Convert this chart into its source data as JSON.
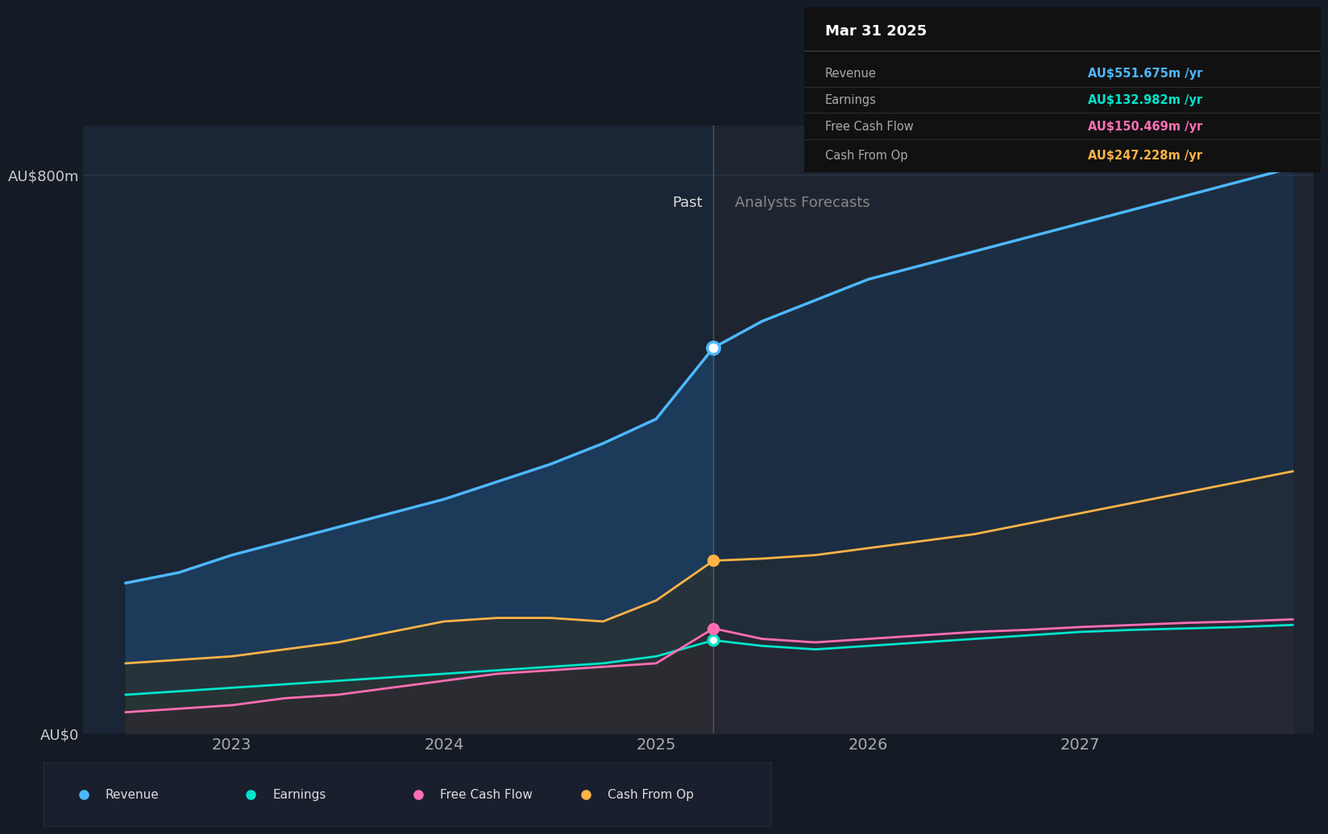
{
  "bg_color": "#141b25",
  "plot_bg_color_left": "#1a2535",
  "plot_bg_color_right": "#1e2530",
  "divider_x": 2025.27,
  "x_min": 2022.3,
  "x_max": 2028.1,
  "y_min": 0,
  "y_max": 870,
  "y_tick_labels": [
    "AU$0",
    "AU$800m"
  ],
  "y_tick_values": [
    0,
    800
  ],
  "x_tick_labels": [
    "2023",
    "2024",
    "2025",
    "2026",
    "2027"
  ],
  "x_tick_values": [
    2023,
    2024,
    2025,
    2026,
    2027
  ],
  "past_label": "Past",
  "forecast_label": "Analysts Forecasts",
  "tooltip_title": "Mar 31 2025",
  "tooltip_items": [
    {
      "label": "Revenue",
      "value": "AU$551.675m /yr",
      "color": "#4db8ff"
    },
    {
      "label": "Earnings",
      "value": "AU$132.982m /yr",
      "color": "#00e5cc"
    },
    {
      "label": "Free Cash Flow",
      "value": "AU$150.469m /yr",
      "color": "#ff6eb4"
    },
    {
      "label": "Cash From Op",
      "value": "AU$247.228m /yr",
      "color": "#ffb347"
    }
  ],
  "revenue": {
    "x": [
      2022.5,
      2022.75,
      2023.0,
      2023.25,
      2023.5,
      2023.75,
      2024.0,
      2024.25,
      2024.5,
      2024.75,
      2025.0,
      2025.27,
      2025.5,
      2025.75,
      2026.0,
      2026.25,
      2026.5,
      2026.75,
      2027.0,
      2027.25,
      2027.5,
      2027.75,
      2028.0
    ],
    "y": [
      215,
      230,
      255,
      275,
      295,
      315,
      335,
      360,
      385,
      415,
      450,
      552,
      590,
      620,
      650,
      670,
      690,
      710,
      730,
      750,
      770,
      790,
      810
    ],
    "color": "#4db8ff",
    "fill_color_left": "#1e4d7a",
    "fill_color_right": "#1a3a5c"
  },
  "earnings": {
    "x": [
      2022.5,
      2022.75,
      2023.0,
      2023.25,
      2023.5,
      2023.75,
      2024.0,
      2024.25,
      2024.5,
      2024.75,
      2025.0,
      2025.27,
      2025.5,
      2025.75,
      2026.0,
      2026.25,
      2026.5,
      2026.75,
      2027.0,
      2027.25,
      2027.5,
      2027.75,
      2028.0
    ],
    "y": [
      55,
      60,
      65,
      70,
      75,
      80,
      85,
      90,
      95,
      100,
      110,
      133,
      125,
      120,
      125,
      130,
      135,
      140,
      145,
      148,
      150,
      152,
      155
    ],
    "color": "#00e5cc",
    "fill_color": "#1a3d3a"
  },
  "free_cash_flow": {
    "x": [
      2022.5,
      2022.75,
      2023.0,
      2023.25,
      2023.5,
      2023.75,
      2024.0,
      2024.25,
      2024.5,
      2024.75,
      2025.0,
      2025.27,
      2025.5,
      2025.75,
      2026.0,
      2026.25,
      2026.5,
      2026.75,
      2027.0,
      2027.25,
      2027.5,
      2027.75,
      2028.0
    ],
    "y": [
      30,
      35,
      40,
      50,
      55,
      65,
      75,
      85,
      90,
      95,
      100,
      150,
      135,
      130,
      135,
      140,
      145,
      148,
      152,
      155,
      158,
      160,
      163
    ],
    "color": "#ff6eb4",
    "fill_color": "#3a1a2a"
  },
  "cash_from_op": {
    "x": [
      2022.5,
      2022.75,
      2023.0,
      2023.25,
      2023.5,
      2023.75,
      2024.0,
      2024.25,
      2024.5,
      2024.75,
      2025.0,
      2025.27,
      2025.5,
      2025.75,
      2026.0,
      2026.25,
      2026.5,
      2026.75,
      2027.0,
      2027.25,
      2027.5,
      2027.75,
      2028.0
    ],
    "y": [
      100,
      105,
      110,
      120,
      130,
      145,
      160,
      165,
      165,
      160,
      190,
      247,
      250,
      255,
      265,
      275,
      285,
      300,
      315,
      330,
      345,
      360,
      375
    ],
    "color": "#ffb347",
    "fill_color_left": "#3a2a0a",
    "fill_color_right": "#2a2a2a"
  },
  "legend_items": [
    {
      "label": "Revenue",
      "color": "#4db8ff"
    },
    {
      "label": "Earnings",
      "color": "#00e5cc"
    },
    {
      "label": "Free Cash Flow",
      "color": "#ff6eb4"
    },
    {
      "label": "Cash From Op",
      "color": "#ffb347"
    }
  ]
}
